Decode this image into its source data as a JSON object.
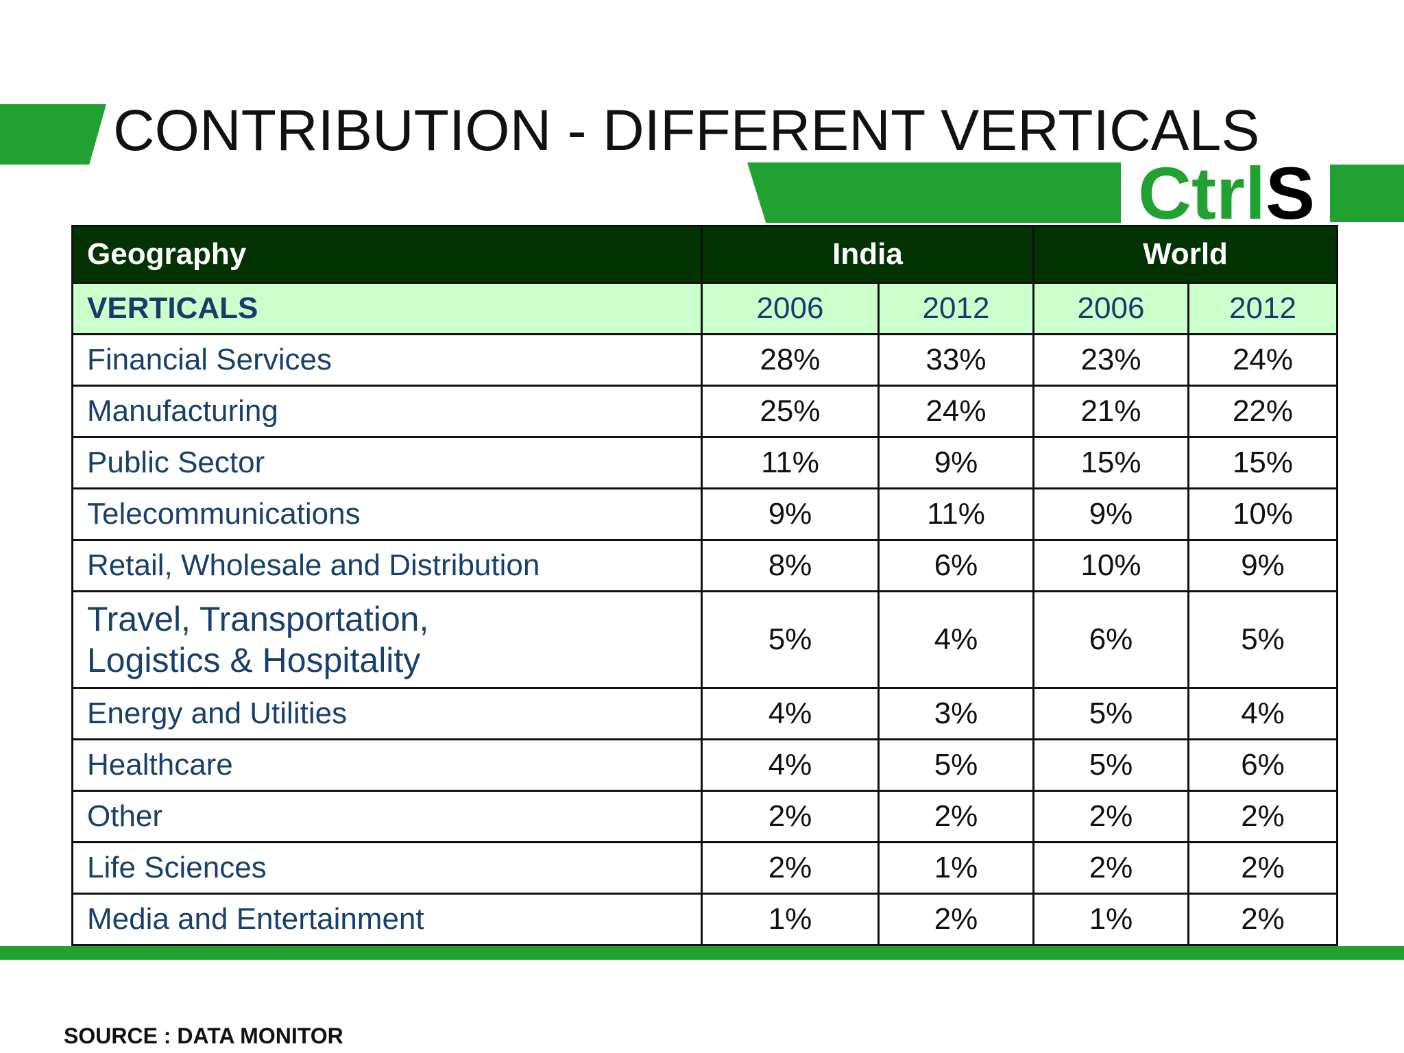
{
  "slide": {
    "title": "CONTRIBUTION - DIFFERENT VERTICALS",
    "logo": {
      "part1": "Ctrl",
      "part2": "S"
    },
    "source": "SOURCE : DATA MONITOR",
    "accent_color": "#22a133",
    "header_color": "#033303",
    "subheader_color": "#ccffcc"
  },
  "table": {
    "geography_label": "Geography",
    "india_label": "India",
    "world_label": "World",
    "verticals_label": "VERTICALS",
    "years": [
      "2006",
      "2012",
      "2006",
      "2012"
    ],
    "rows": [
      {
        "label": "Financial Services",
        "values": [
          "28%",
          "33%",
          "23%",
          "24%"
        ]
      },
      {
        "label": "Manufacturing",
        "values": [
          "25%",
          "24%",
          "21%",
          "22%"
        ]
      },
      {
        "label": "Public Sector",
        "values": [
          "11%",
          "9%",
          "15%",
          "15%"
        ]
      },
      {
        "label": "Telecommunications",
        "values": [
          "9%",
          "11%",
          "9%",
          "10%"
        ]
      },
      {
        "label": "Retail, Wholesale and Distribution",
        "values": [
          "8%",
          "6%",
          "10%",
          "9%"
        ]
      },
      {
        "label": "Travel, Transportation,\nLogistics & Hospitality",
        "values": [
          "5%",
          "4%",
          "6%",
          "5%"
        ]
      },
      {
        "label": "Energy and Utilities",
        "values": [
          "4%",
          "3%",
          "5%",
          "4%"
        ]
      },
      {
        "label": "Healthcare",
        "values": [
          "4%",
          "5%",
          "5%",
          "6%"
        ]
      },
      {
        "label": "Other",
        "values": [
          "2%",
          "2%",
          "2%",
          "2%"
        ]
      },
      {
        "label": "Life Sciences",
        "values": [
          "2%",
          "1%",
          "2%",
          "2%"
        ]
      },
      {
        "label": "Media and Entertainment",
        "values": [
          "1%",
          "2%",
          "1%",
          "2%"
        ]
      }
    ]
  }
}
